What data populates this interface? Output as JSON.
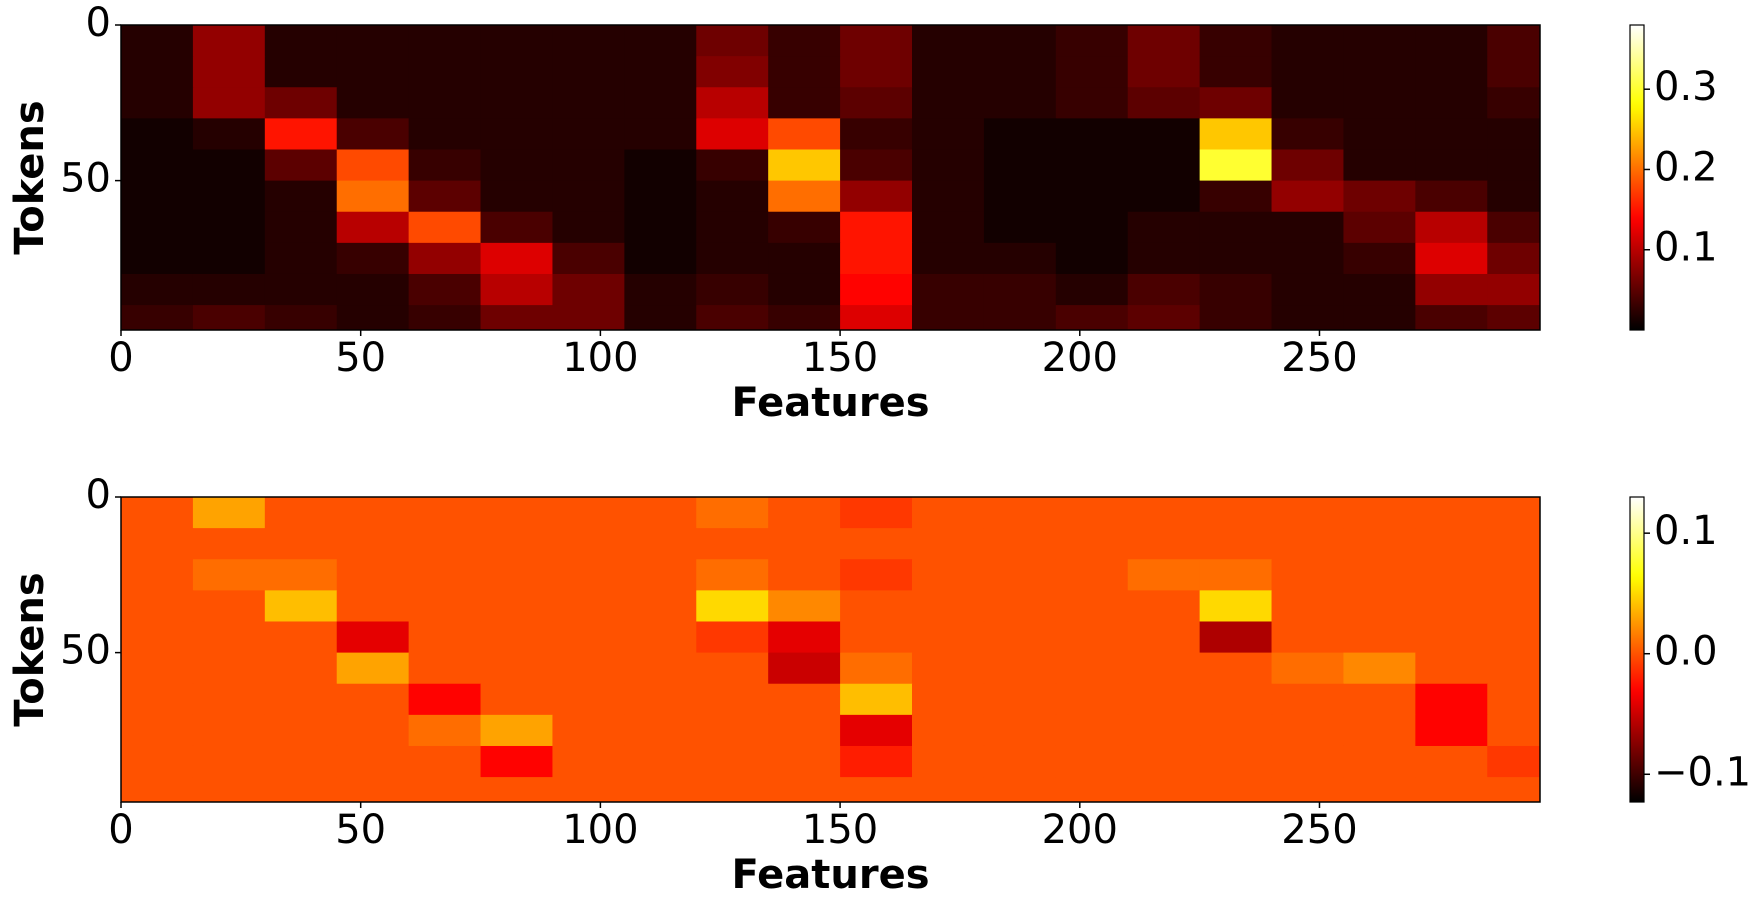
{
  "chart_data": [
    {
      "type": "heatmap",
      "colormap": "hot",
      "xlabel": "Features",
      "ylabel": "Tokens",
      "x": [
        0,
        15,
        30,
        45,
        60,
        75,
        90,
        105,
        120,
        135,
        150,
        165,
        180,
        195,
        210,
        225,
        240,
        255,
        270,
        285
      ],
      "y": [
        0,
        10,
        20,
        30,
        40,
        50,
        60,
        70,
        80,
        90
      ],
      "xlim": [
        0,
        296
      ],
      "ylim": [
        98,
        0
      ],
      "xticks": [
        0,
        50,
        100,
        150,
        200,
        250
      ],
      "yticks": [
        0,
        50
      ],
      "clim": [
        0,
        0.38
      ],
      "cticks": [
        0.1,
        0.2,
        0.3
      ],
      "values": [
        [
          0.02,
          0.08,
          0.02,
          0.02,
          0.02,
          0.02,
          0.02,
          0.02,
          0.06,
          0.03,
          0.06,
          0.02,
          0.02,
          0.03,
          0.06,
          0.03,
          0.02,
          0.02,
          0.02,
          0.04
        ],
        [
          0.02,
          0.08,
          0.02,
          0.02,
          0.02,
          0.02,
          0.02,
          0.02,
          0.07,
          0.03,
          0.06,
          0.02,
          0.02,
          0.03,
          0.06,
          0.03,
          0.02,
          0.02,
          0.02,
          0.04
        ],
        [
          0.02,
          0.08,
          0.06,
          0.02,
          0.02,
          0.02,
          0.02,
          0.02,
          0.1,
          0.03,
          0.05,
          0.02,
          0.02,
          0.03,
          0.05,
          0.06,
          0.02,
          0.02,
          0.02,
          0.03
        ],
        [
          0.01,
          0.02,
          0.15,
          0.04,
          0.02,
          0.02,
          0.02,
          0.02,
          0.12,
          0.18,
          0.03,
          0.02,
          0.01,
          0.01,
          0.01,
          0.25,
          0.03,
          0.02,
          0.02,
          0.02
        ],
        [
          0.01,
          0.01,
          0.05,
          0.18,
          0.03,
          0.02,
          0.02,
          0.01,
          0.03,
          0.25,
          0.04,
          0.02,
          0.01,
          0.01,
          0.01,
          0.3,
          0.06,
          0.02,
          0.02,
          0.02
        ],
        [
          0.01,
          0.01,
          0.02,
          0.2,
          0.05,
          0.02,
          0.02,
          0.01,
          0.02,
          0.2,
          0.08,
          0.02,
          0.01,
          0.01,
          0.01,
          0.03,
          0.08,
          0.06,
          0.04,
          0.02
        ],
        [
          0.01,
          0.01,
          0.02,
          0.1,
          0.18,
          0.04,
          0.02,
          0.01,
          0.02,
          0.03,
          0.15,
          0.02,
          0.01,
          0.01,
          0.02,
          0.02,
          0.02,
          0.05,
          0.1,
          0.04
        ],
        [
          0.01,
          0.01,
          0.02,
          0.03,
          0.08,
          0.12,
          0.04,
          0.01,
          0.02,
          0.02,
          0.15,
          0.02,
          0.02,
          0.01,
          0.02,
          0.02,
          0.02,
          0.03,
          0.12,
          0.06
        ],
        [
          0.02,
          0.02,
          0.02,
          0.02,
          0.04,
          0.1,
          0.06,
          0.02,
          0.03,
          0.02,
          0.14,
          0.03,
          0.03,
          0.02,
          0.04,
          0.03,
          0.02,
          0.02,
          0.08,
          0.08
        ],
        [
          0.03,
          0.04,
          0.03,
          0.02,
          0.03,
          0.06,
          0.06,
          0.02,
          0.04,
          0.03,
          0.12,
          0.03,
          0.03,
          0.04,
          0.05,
          0.03,
          0.02,
          0.02,
          0.04,
          0.05
        ]
      ]
    },
    {
      "type": "heatmap",
      "colormap": "hot",
      "xlabel": "Features",
      "ylabel": "Tokens",
      "x": [
        0,
        15,
        30,
        45,
        60,
        75,
        90,
        105,
        120,
        135,
        150,
        165,
        180,
        195,
        210,
        225,
        240,
        255,
        270,
        285
      ],
      "y": [
        0,
        10,
        20,
        30,
        40,
        50,
        60,
        70,
        80,
        90
      ],
      "xlim": [
        0,
        296
      ],
      "ylim": [
        98,
        0
      ],
      "xticks": [
        0,
        50,
        100,
        150,
        200,
        250
      ],
      "yticks": [
        0,
        50
      ],
      "clim": [
        -0.123,
        0.13
      ],
      "cticks": [
        {
          "value": -0.1,
          "label": "−0.1"
        },
        {
          "value": 0,
          "label": "0.0"
        },
        0.1
      ],
      "values": [
        [
          0,
          0.03,
          0,
          0,
          0,
          0,
          0,
          0,
          0.01,
          0,
          -0.01,
          0,
          0,
          0,
          0,
          0,
          0,
          0,
          0,
          0
        ],
        [
          0,
          0,
          0,
          0,
          0,
          0,
          0,
          0,
          0,
          0,
          0,
          0,
          0,
          0,
          0,
          0,
          0,
          0,
          0,
          0
        ],
        [
          0,
          0.01,
          0.01,
          0,
          0,
          0,
          0,
          0,
          0.01,
          0,
          -0.01,
          0,
          0,
          0,
          0.01,
          0.01,
          0,
          0,
          0,
          0
        ],
        [
          0,
          0,
          0.04,
          0,
          0,
          0,
          0,
          0,
          0.05,
          0.02,
          0,
          0,
          0,
          0,
          0,
          0.05,
          0,
          0,
          0,
          0
        ],
        [
          0,
          0,
          0,
          -0.04,
          0,
          0,
          0,
          0,
          -0.01,
          -0.04,
          0,
          0,
          0,
          0,
          0,
          -0.06,
          0,
          0,
          0,
          0
        ],
        [
          0,
          0,
          0,
          0.03,
          0,
          0,
          0,
          0,
          0,
          -0.05,
          0.01,
          0,
          0,
          0,
          0,
          0,
          0.01,
          0.02,
          0,
          0
        ],
        [
          0,
          0,
          0,
          0,
          -0.03,
          0,
          0,
          0,
          0,
          0,
          0.04,
          0,
          0,
          0,
          0,
          0,
          0,
          0,
          -0.03,
          0
        ],
        [
          0,
          0,
          0,
          0,
          0.01,
          0.03,
          0,
          0,
          0,
          0,
          -0.04,
          0,
          0,
          0,
          0,
          0,
          0,
          0,
          -0.03,
          0
        ],
        [
          0,
          0,
          0,
          0,
          0,
          -0.03,
          0,
          0,
          0,
          0,
          -0.02,
          0,
          0,
          0,
          0,
          0,
          0,
          0,
          0,
          -0.01
        ],
        [
          0,
          0,
          0,
          0,
          0,
          0,
          0,
          0,
          0,
          0,
          0,
          0,
          0,
          0,
          0,
          0,
          0,
          0,
          0,
          0
        ]
      ]
    }
  ]
}
